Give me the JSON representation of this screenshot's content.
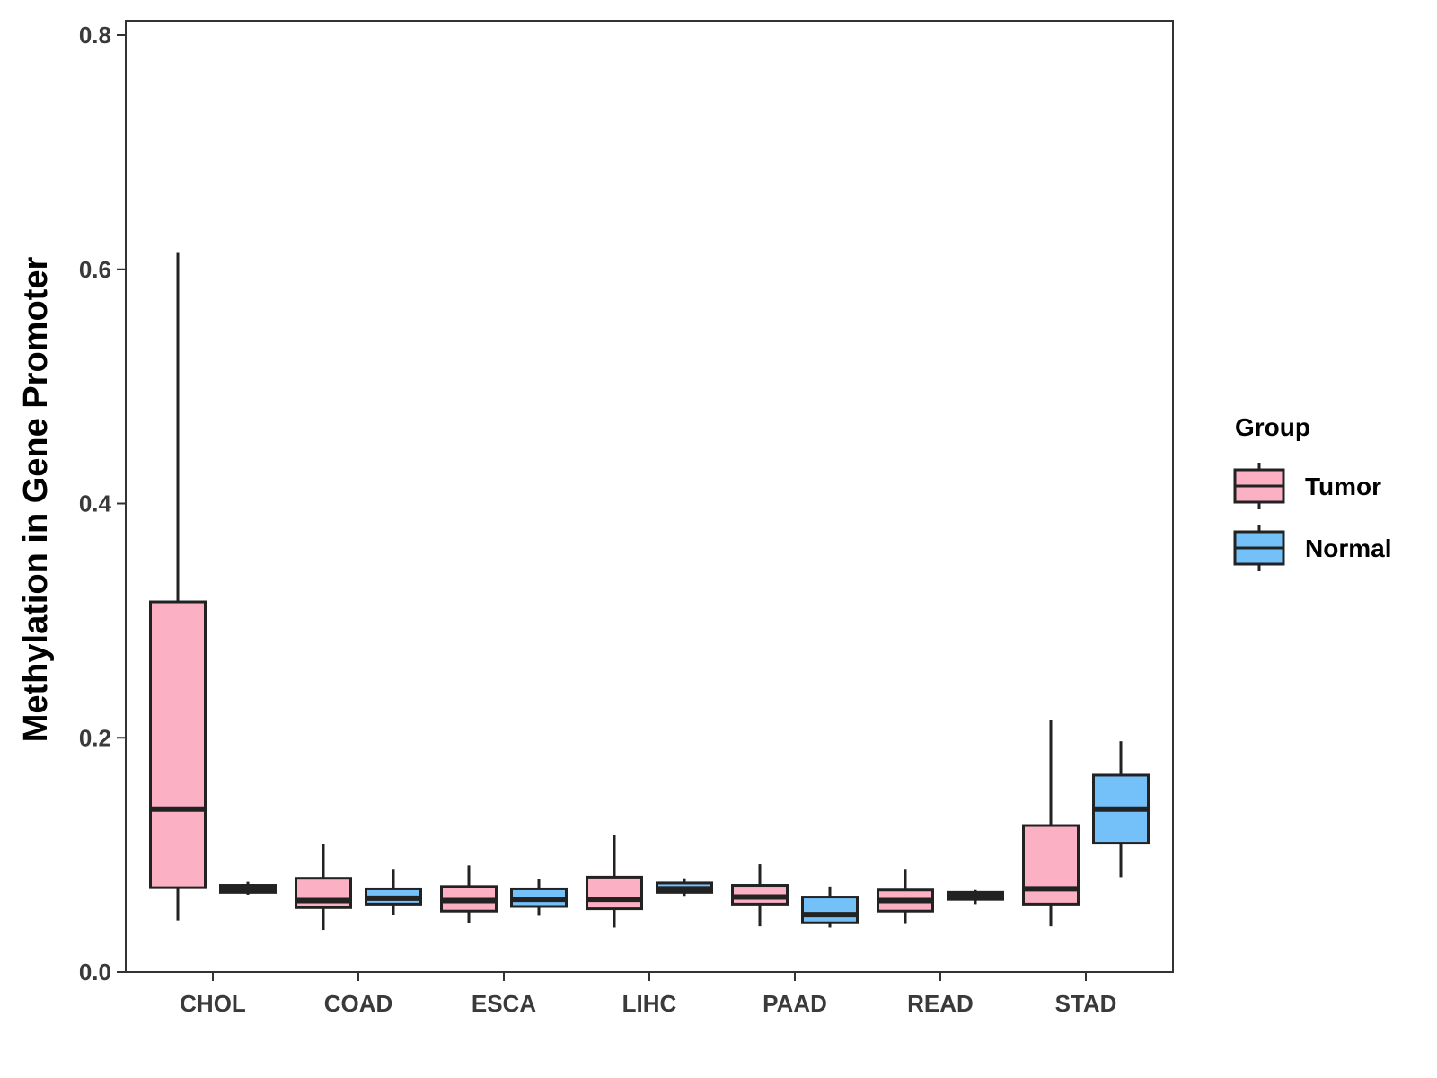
{
  "chart_data": {
    "type": "boxplot",
    "title": "",
    "xlabel": "",
    "ylabel": "Methylation in Gene Promoter",
    "ylim": [
      0,
      0.8
    ],
    "yticks": [
      0.0,
      0.2,
      0.4,
      0.6,
      0.8
    ],
    "ytick_labels": [
      "0.0",
      "0.2",
      "0.4",
      "0.6",
      "0.8"
    ],
    "grid": false,
    "legend_position": "right",
    "categories": [
      "CHOL",
      "COAD",
      "ESCA",
      "LIHC",
      "PAAD",
      "READ",
      "STAD"
    ],
    "legend": {
      "title": "Group",
      "entries": [
        {
          "name": "Tumor",
          "color": "#FBB0C4"
        },
        {
          "name": "Normal",
          "color": "#74C1FA"
        }
      ]
    },
    "series": [
      {
        "name": "Tumor",
        "color": "#FBB0C4",
        "boxes": [
          {
            "category": "CHOL",
            "whisker_low": 0.044,
            "q1": 0.072,
            "median": 0.139,
            "q3": 0.316,
            "whisker_high": 0.614
          },
          {
            "category": "COAD",
            "whisker_low": 0.036,
            "q1": 0.055,
            "median": 0.061,
            "q3": 0.08,
            "whisker_high": 0.109
          },
          {
            "category": "ESCA",
            "whisker_low": 0.042,
            "q1": 0.052,
            "median": 0.061,
            "q3": 0.073,
            "whisker_high": 0.091
          },
          {
            "category": "LIHC",
            "whisker_low": 0.038,
            "q1": 0.054,
            "median": 0.062,
            "q3": 0.081,
            "whisker_high": 0.117
          },
          {
            "category": "PAAD",
            "whisker_low": 0.039,
            "q1": 0.058,
            "median": 0.064,
            "q3": 0.074,
            "whisker_high": 0.092
          },
          {
            "category": "READ",
            "whisker_low": 0.041,
            "q1": 0.052,
            "median": 0.061,
            "q3": 0.07,
            "whisker_high": 0.088
          },
          {
            "category": "STAD",
            "whisker_low": 0.039,
            "q1": 0.058,
            "median": 0.071,
            "q3": 0.125,
            "whisker_high": 0.215
          }
        ]
      },
      {
        "name": "Normal",
        "color": "#74C1FA",
        "boxes": [
          {
            "category": "CHOL",
            "whisker_low": 0.066,
            "q1": 0.068,
            "median": 0.071,
            "q3": 0.074,
            "whisker_high": 0.077
          },
          {
            "category": "COAD",
            "whisker_low": 0.049,
            "q1": 0.058,
            "median": 0.063,
            "q3": 0.071,
            "whisker_high": 0.088
          },
          {
            "category": "ESCA",
            "whisker_low": 0.048,
            "q1": 0.056,
            "median": 0.062,
            "q3": 0.071,
            "whisker_high": 0.079
          },
          {
            "category": "LIHC",
            "whisker_low": 0.065,
            "q1": 0.068,
            "median": 0.071,
            "q3": 0.076,
            "whisker_high": 0.08
          },
          {
            "category": "PAAD",
            "whisker_low": 0.038,
            "q1": 0.042,
            "median": 0.049,
            "q3": 0.064,
            "whisker_high": 0.073
          },
          {
            "category": "READ",
            "whisker_low": 0.058,
            "q1": 0.062,
            "median": 0.065,
            "q3": 0.068,
            "whisker_high": 0.07
          },
          {
            "category": "STAD",
            "whisker_low": 0.081,
            "q1": 0.11,
            "median": 0.139,
            "q3": 0.168,
            "whisker_high": 0.197
          }
        ]
      }
    ]
  }
}
